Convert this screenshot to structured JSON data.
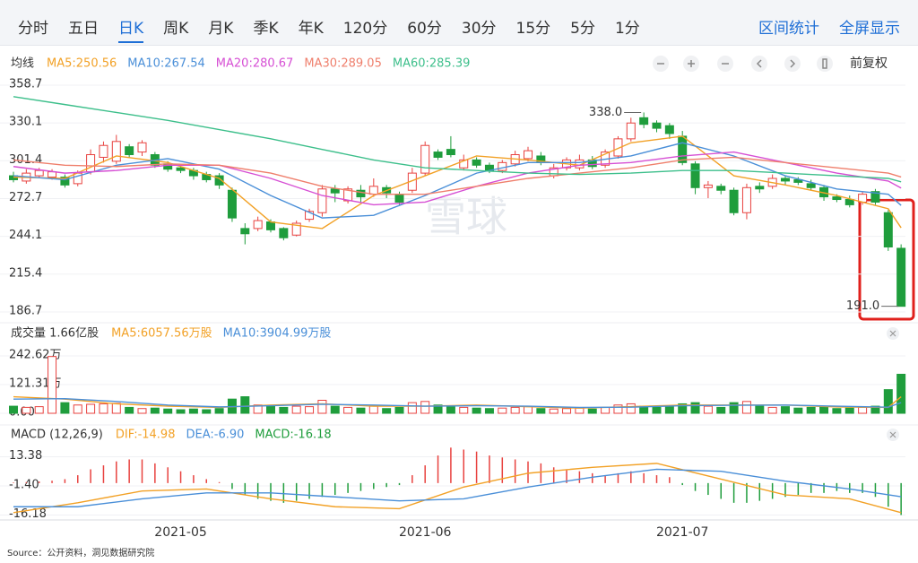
{
  "toolbar": {
    "tabs": [
      "分时",
      "五日",
      "日K",
      "周K",
      "月K",
      "季K",
      "年K",
      "120分",
      "60分",
      "30分",
      "15分",
      "5分",
      "1分"
    ],
    "active": 2,
    "tools": [
      "区间统计",
      "全屏显示"
    ]
  },
  "chart_data": [
    {
      "type": "candlestick",
      "label": "均线",
      "adjust": "前复权",
      "up_color": "#e8423f",
      "down_color": "#1f9d3c",
      "grid": true,
      "categories": [
        null,
        null,
        null,
        null,
        null,
        null,
        null,
        null,
        null,
        null,
        null,
        null,
        null,
        "2021-05",
        null,
        null,
        null,
        null,
        null,
        null,
        null,
        null,
        null,
        null,
        null,
        null,
        null,
        null,
        null,
        null,
        null,
        null,
        "2021-06",
        null,
        null,
        null,
        null,
        null,
        null,
        null,
        null,
        null,
        null,
        null,
        null,
        null,
        null,
        null,
        null,
        null,
        null,
        null,
        "2021-07",
        null,
        null,
        null,
        null,
        null,
        null,
        null,
        null,
        null,
        null,
        null,
        null,
        null,
        null,
        null,
        null,
        null
      ],
      "open": [
        290,
        286,
        290,
        289,
        289,
        284,
        293,
        304,
        301,
        312,
        308,
        306,
        299,
        296,
        294,
        291,
        290,
        279,
        250,
        250,
        255,
        250,
        245,
        257,
        262,
        280,
        271,
        279,
        276,
        281,
        276,
        279,
        292,
        308,
        310,
        296,
        302,
        298,
        294,
        299,
        303,
        305,
        290,
        296,
        296,
        302,
        298,
        305,
        318,
        334,
        330,
        328,
        320,
        299,
        281,
        282,
        279,
        262,
        282,
        282,
        288,
        287,
        284,
        281,
        274,
        272,
        270,
        278,
        262,
        235
      ],
      "high": [
        293,
        295,
        296,
        295,
        291,
        294,
        310,
        316,
        321,
        314,
        317,
        308,
        301,
        298,
        296,
        293,
        292,
        281,
        254,
        259,
        257,
        251,
        256,
        265,
        283,
        283,
        282,
        283,
        288,
        283,
        278,
        296,
        316,
        310,
        320,
        306,
        304,
        300,
        302,
        309,
        312,
        308,
        299,
        304,
        306,
        305,
        310,
        320,
        334,
        338,
        332,
        330,
        324,
        301,
        286,
        284,
        281,
        284,
        285,
        291,
        290,
        289,
        287,
        283,
        276,
        275,
        278,
        280,
        264,
        238
      ],
      "low": [
        285,
        284,
        288,
        287,
        281,
        282,
        291,
        300,
        299,
        304,
        305,
        296,
        293,
        292,
        287,
        285,
        280,
        255,
        238,
        248,
        247,
        241,
        244,
        255,
        259,
        270,
        269,
        270,
        274,
        273,
        268,
        277,
        290,
        302,
        304,
        294,
        296,
        292,
        292,
        297,
        301,
        298,
        288,
        294,
        294,
        295,
        296,
        303,
        316,
        326,
        323,
        318,
        298,
        276,
        273,
        276,
        260,
        257,
        277,
        280,
        283,
        283,
        279,
        271,
        270,
        266,
        268,
        268,
        233,
        191
      ],
      "close": [
        287,
        292,
        294,
        293,
        283,
        292,
        306,
        313,
        316,
        306,
        315,
        298,
        295,
        294,
        290,
        287,
        283,
        258,
        246,
        256,
        249,
        243,
        254,
        263,
        280,
        277,
        280,
        274,
        282,
        277,
        270,
        292,
        313,
        304,
        306,
        302,
        298,
        294,
        300,
        306,
        309,
        300,
        296,
        302,
        302,
        297,
        308,
        318,
        330,
        329,
        326,
        322,
        300,
        281,
        283,
        279,
        262,
        281,
        280,
        288,
        286,
        285,
        281,
        274,
        272,
        268,
        276,
        270,
        236,
        191
      ],
      "series": [
        {
          "name": "MA5:250.56",
          "color": "#f2a126",
          "x": [
            0,
            4,
            8,
            12,
            16,
            20,
            24,
            28,
            32,
            36,
            40,
            44,
            48,
            52,
            56,
            60,
            64,
            68,
            69
          ],
          "values": [
            289,
            288,
            305,
            300,
            288,
            255,
            250,
            275,
            290,
            305,
            302,
            298,
            315,
            320,
            290,
            283,
            275,
            265,
            250.56
          ]
        },
        {
          "name": "MA10:267.54",
          "color": "#4a8fd8",
          "x": [
            0,
            4,
            8,
            12,
            16,
            20,
            24,
            28,
            32,
            36,
            40,
            44,
            48,
            52,
            56,
            60,
            64,
            68,
            69
          ],
          "values": [
            290,
            287,
            298,
            303,
            295,
            275,
            258,
            260,
            275,
            292,
            300,
            300,
            305,
            315,
            305,
            290,
            280,
            276,
            267.54
          ]
        },
        {
          "name": "MA20:280.67",
          "color": "#d64fd4",
          "x": [
            0,
            4,
            8,
            12,
            16,
            20,
            24,
            28,
            32,
            36,
            40,
            44,
            48,
            52,
            56,
            60,
            64,
            68,
            69
          ],
          "values": [
            297,
            292,
            294,
            298,
            298,
            288,
            275,
            268,
            270,
            282,
            292,
            298,
            300,
            305,
            308,
            300,
            292,
            286,
            280.67
          ]
        },
        {
          "name": "MA30:289.05",
          "color": "#ef7f6c",
          "x": [
            0,
            4,
            8,
            12,
            16,
            20,
            24,
            28,
            32,
            36,
            40,
            44,
            48,
            52,
            56,
            60,
            64,
            68,
            69
          ],
          "values": [
            302,
            298,
            297,
            299,
            298,
            292,
            282,
            276,
            276,
            282,
            288,
            292,
            296,
            302,
            304,
            300,
            296,
            292,
            289.05
          ]
        },
        {
          "name": "MA60:285.39",
          "color": "#3dbf8b",
          "x": [
            0,
            4,
            8,
            12,
            16,
            20,
            24,
            28,
            32,
            36,
            40,
            44,
            48,
            52,
            56,
            60,
            64,
            68,
            69
          ],
          "values": [
            350,
            344,
            338,
            332,
            325,
            318,
            310,
            302,
            296,
            294,
            292,
            291,
            292,
            294,
            294,
            292,
            290,
            288,
            285.39
          ]
        }
      ],
      "ylim": [
        186.7,
        358.7
      ],
      "yticks": [
        358.7,
        330.1,
        301.4,
        272.7,
        244.1,
        215.4,
        186.7
      ],
      "annotations": [
        {
          "text": "338.0",
          "x": 49,
          "y": 338.0
        },
        {
          "text": "191.0",
          "x": 69,
          "y": 191.0
        }
      ]
    },
    {
      "type": "bar",
      "title": "成交量 1.66亿股",
      "grid": true,
      "values": [
        30,
        25,
        28,
        240,
        45,
        35,
        38,
        40,
        42,
        25,
        20,
        22,
        18,
        15,
        18,
        15,
        20,
        60,
        70,
        35,
        30,
        25,
        30,
        28,
        55,
        30,
        25,
        22,
        30,
        20,
        25,
        45,
        50,
        35,
        30,
        25,
        22,
        20,
        22,
        25,
        28,
        20,
        18,
        20,
        22,
        18,
        25,
        35,
        40,
        30,
        25,
        28,
        40,
        45,
        30,
        25,
        45,
        50,
        30,
        25,
        28,
        22,
        25,
        30,
        20,
        22,
        25,
        30,
        100,
        165
      ],
      "series": [
        {
          "name": "MA5:6057.56万股",
          "color": "#f2a126",
          "x": [
            0,
            4,
            8,
            12,
            16,
            20,
            24,
            28,
            32,
            36,
            40,
            44,
            48,
            52,
            56,
            60,
            64,
            68,
            69
          ],
          "values": [
            70,
            60,
            40,
            30,
            25,
            35,
            40,
            30,
            30,
            35,
            28,
            22,
            28,
            35,
            35,
            35,
            27,
            25,
            70
          ]
        },
        {
          "name": "MA10:3904.99万股",
          "color": "#4a8fd8",
          "x": [
            0,
            4,
            8,
            12,
            16,
            20,
            24,
            28,
            32,
            36,
            40,
            44,
            48,
            52,
            56,
            60,
            64,
            68,
            69
          ],
          "values": [
            60,
            62,
            50,
            35,
            27,
            32,
            38,
            35,
            30,
            32,
            30,
            25,
            26,
            32,
            34,
            35,
            30,
            26,
            45
          ]
        }
      ],
      "ylim": [
        0,
        242.62
      ],
      "yticks": [
        {
          "value": 242.62,
          "label": "242.62万"
        },
        {
          "value": 121.31,
          "label": "121.31万"
        },
        {
          "value": 0,
          "label": "0.00"
        }
      ]
    },
    {
      "type": "macd",
      "title": "MACD (12,26,9)",
      "hist_label": "MACD:-16.18",
      "up_color": "#e8423f",
      "down_color": "#1f9d3c",
      "grid": true,
      "values": [
        0.3,
        0.5,
        0.8,
        1.2,
        2,
        4,
        7,
        9,
        11,
        12,
        12,
        10,
        8,
        6,
        4,
        2,
        0.5,
        -3,
        -6,
        -8,
        -9,
        -10,
        -9,
        -8,
        -7,
        -6,
        -5,
        -4,
        -3,
        -2,
        -1,
        4,
        9,
        14,
        18,
        17,
        16,
        14,
        13,
        12,
        11,
        10,
        8,
        7,
        6,
        5,
        4,
        5,
        6,
        5,
        4,
        3,
        -1,
        -4,
        -6,
        -8,
        -10,
        -10,
        -9,
        -8,
        -7,
        -6,
        -5,
        -5,
        -4,
        -5,
        -5,
        -7,
        -12,
        -16.18
      ],
      "series": [
        {
          "name": "DIF:-14.98",
          "color": "#f2a126",
          "x": [
            0,
            5,
            10,
            15,
            20,
            25,
            30,
            35,
            40,
            45,
            50,
            55,
            60,
            65,
            69
          ],
          "values": [
            -15,
            -10,
            -4,
            -3,
            -8,
            -12,
            -13,
            -2,
            5,
            8,
            10,
            2,
            -6,
            -8,
            -14.98
          ]
        },
        {
          "name": "DEA:-6.90",
          "color": "#4a8fd8",
          "x": [
            0,
            5,
            10,
            15,
            20,
            25,
            30,
            35,
            40,
            45,
            50,
            55,
            60,
            65,
            69
          ],
          "values": [
            -12,
            -12,
            -8,
            -5,
            -5,
            -7,
            -9,
            -8,
            -2,
            3,
            7,
            6,
            1,
            -3,
            -6.9
          ]
        }
      ],
      "ylim": [
        -17.8,
        15.4
      ],
      "yticks": [
        13.38,
        {
          "value": -1.4,
          "label": "-1.40"
        },
        -16.18
      ]
    }
  ],
  "watermark": "雪球",
  "source": "Source：公开资料，洞见数据研究院"
}
